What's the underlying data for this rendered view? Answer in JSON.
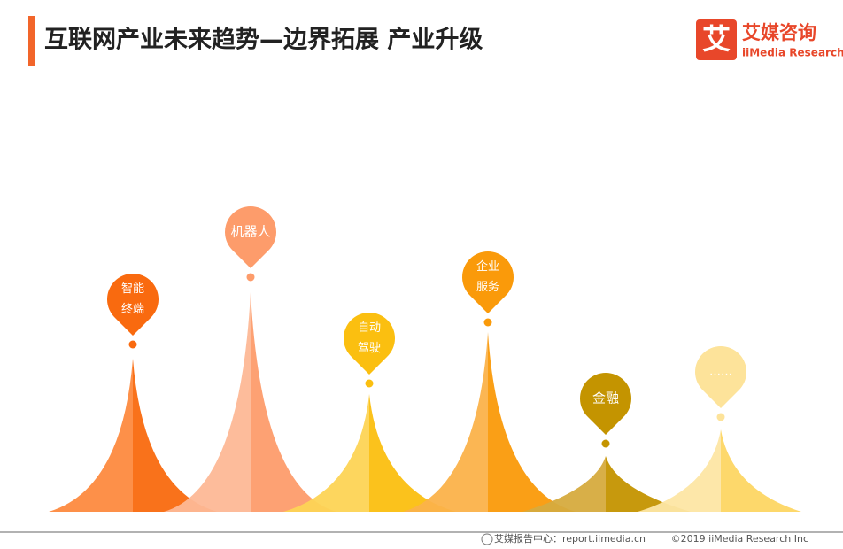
{
  "header": {
    "title": "互联网产业未来趋势—边界拓展 产业升级",
    "logo_mark": "艾",
    "logo_cn": "艾媒咨询",
    "logo_en": "iiMedia Research"
  },
  "nodes": [
    {
      "lines": [
        "智能",
        "终端"
      ]
    },
    {
      "lines": [
        "机器人"
      ]
    },
    {
      "lines": [
        "自动",
        "驾驶"
      ]
    },
    {
      "lines": [
        "企业",
        "服务"
      ]
    },
    {
      "lines": [
        "金融"
      ]
    },
    {
      "lines": [
        "……"
      ]
    }
  ],
  "footer": {
    "source": "艾媒报告中心：report.iimedia.cn",
    "copyright": "©2019  iiMedia Research  Inc"
  }
}
